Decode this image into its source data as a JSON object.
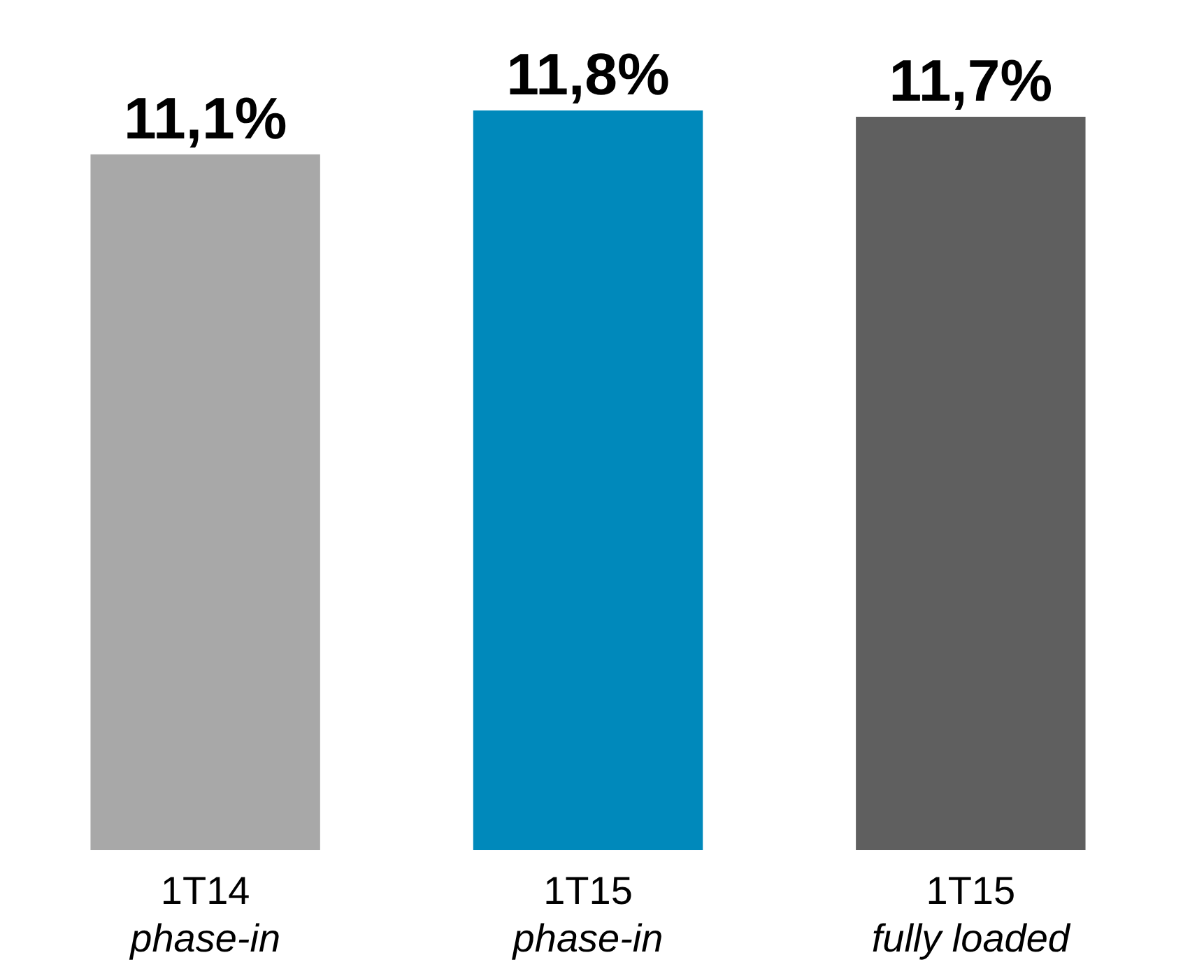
{
  "chart_data": {
    "type": "bar",
    "categories": [
      "1T14\nphase-in",
      "1T15\nphase-in",
      "1T15\nfully loaded"
    ],
    "values": [
      11.1,
      11.8,
      11.7
    ],
    "colors": [
      "#a8a8a8",
      "#0089bb",
      "#5f5f5f"
    ],
    "value_labels": [
      "11,1%",
      "11,8%",
      "11,7%"
    ]
  }
}
